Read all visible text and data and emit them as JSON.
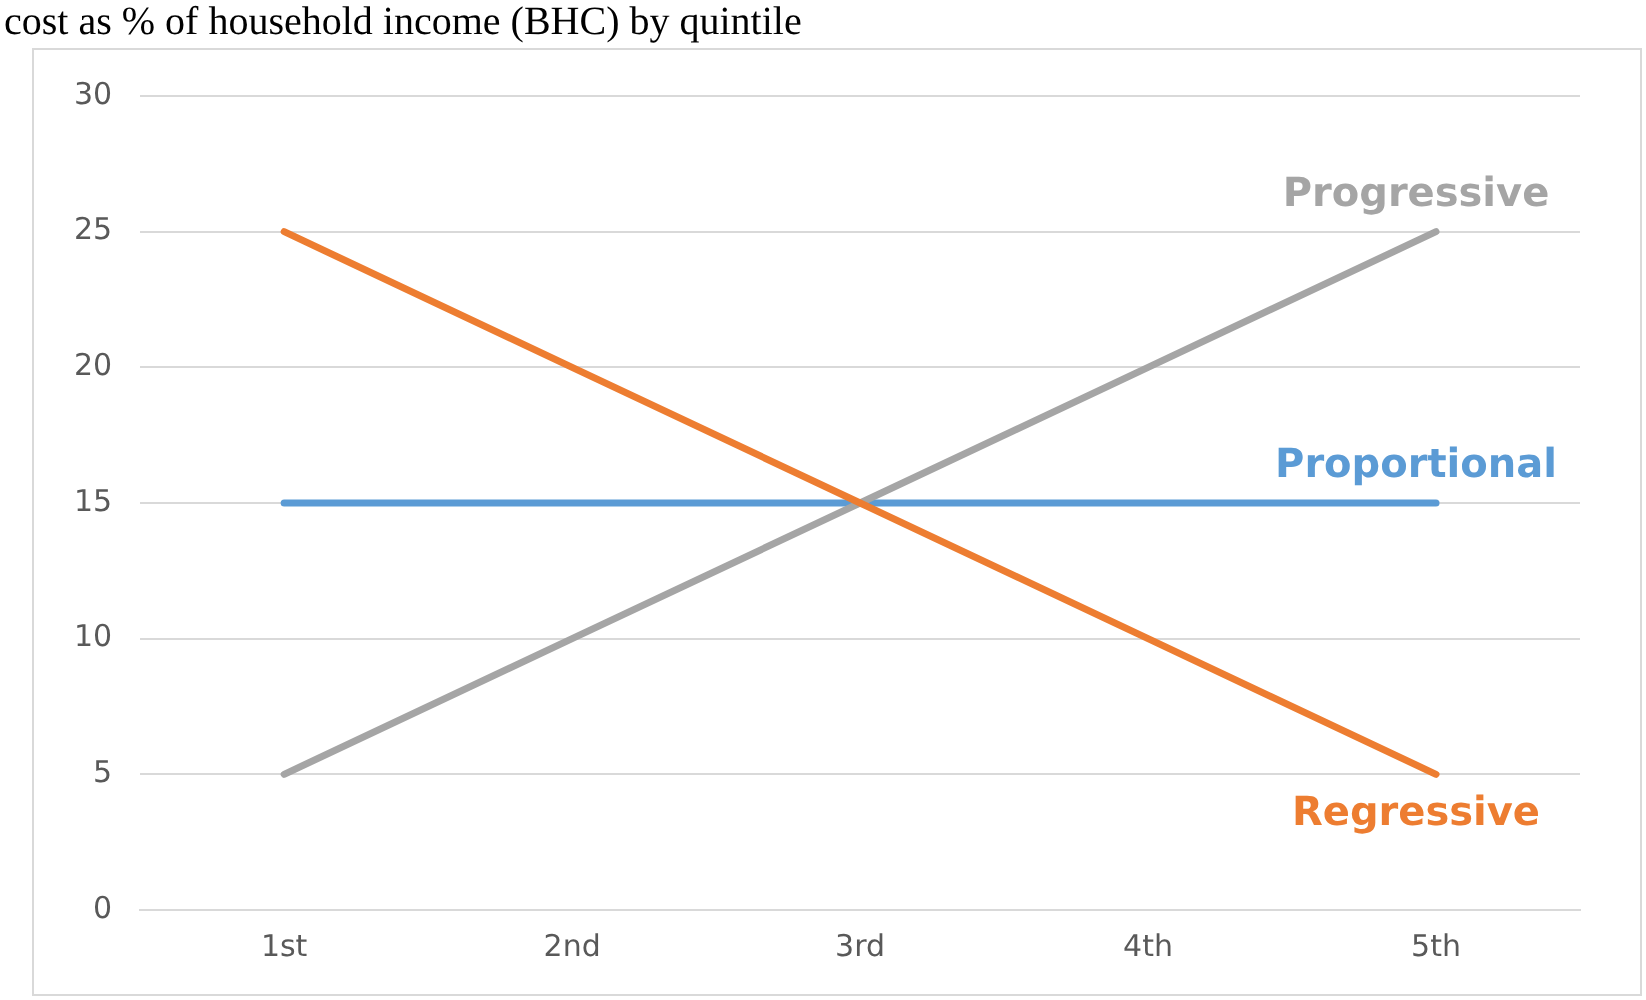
{
  "chart_data": {
    "type": "line",
    "title": "cost as % of household income (BHC) by quintile",
    "categories": [
      "1st",
      "2nd",
      "3rd",
      "4th",
      "5th"
    ],
    "series": [
      {
        "name": "Regressive",
        "color": "#ed7d31",
        "values": [
          25,
          20,
          15,
          10,
          5
        ]
      },
      {
        "name": "Progressive",
        "color": "#a5a5a5",
        "values": [
          5,
          10,
          15,
          20,
          25
        ]
      },
      {
        "name": "Proportional",
        "color": "#5b9bd5",
        "values": [
          15,
          15,
          15,
          15,
          15
        ]
      }
    ],
    "ylim": [
      0,
      30
    ],
    "yticks": [
      0,
      5,
      10,
      15,
      20,
      25,
      30
    ],
    "grid": "y",
    "legend": false,
    "marker": "none",
    "line_style": "solid"
  }
}
